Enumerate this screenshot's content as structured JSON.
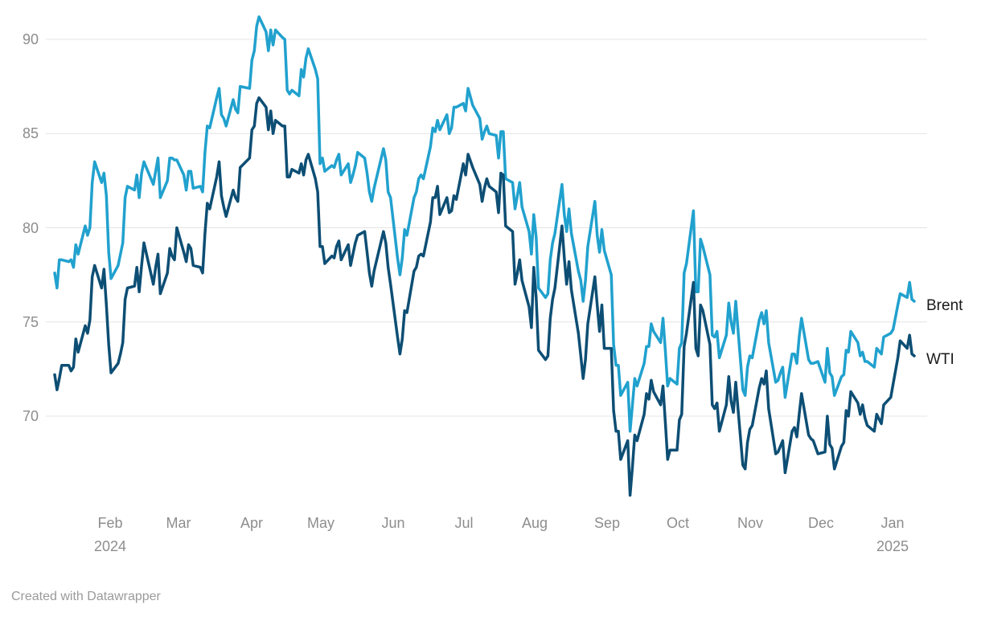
{
  "footer": {
    "credit": "Created with Datawrapper"
  },
  "colors": {
    "background": "#FFFFFF",
    "brent_line": "#21A1CE",
    "wti_line": "#0D4E74",
    "gridline": "#E4E4E4",
    "axis_text": "#8D8D8D",
    "legend_text": "#1A1A1A",
    "footer_text": "#9A9A9A"
  },
  "chart_data": {
    "type": "line",
    "title": "",
    "xlabel": "",
    "ylabel": "",
    "grid": "horizontal",
    "legend_position": "right-end-of-lines",
    "ylim": [
      65.5,
      91.5
    ],
    "x_range": [
      "2024-01-09",
      "2025-01-09"
    ],
    "y_ticks": [
      90,
      85,
      80,
      75,
      70
    ],
    "x_tick_labels": [
      "Feb",
      "Mar",
      "Apr",
      "May",
      "Jun",
      "Jul",
      "Aug",
      "Sep",
      "Oct",
      "Nov",
      "Dec",
      "Jan"
    ],
    "x_year_labels": [
      "2024",
      "2025"
    ],
    "series": [
      {
        "name": "Brent",
        "color": "#21A1CE"
      },
      {
        "name": "WTI",
        "color": "#0D4E74"
      }
    ],
    "points_format": [
      "date",
      "Brent",
      "WTI"
    ],
    "points": [
      [
        "2024-01-09",
        77.6,
        72.2
      ],
      [
        "2024-01-10",
        76.8,
        71.4
      ],
      [
        "2024-01-11",
        78.3,
        72.0
      ],
      [
        "2024-01-12",
        78.3,
        72.7
      ],
      [
        "2024-01-15",
        78.2,
        72.7
      ],
      [
        "2024-01-16",
        78.3,
        72.4
      ],
      [
        "2024-01-17",
        77.9,
        72.6
      ],
      [
        "2024-01-18",
        79.1,
        74.1
      ],
      [
        "2024-01-19",
        78.6,
        73.4
      ],
      [
        "2024-01-22",
        80.1,
        74.8
      ],
      [
        "2024-01-23",
        79.6,
        74.4
      ],
      [
        "2024-01-24",
        80.0,
        75.1
      ],
      [
        "2024-01-25",
        82.4,
        77.4
      ],
      [
        "2024-01-26",
        83.5,
        78.0
      ],
      [
        "2024-01-29",
        82.4,
        76.8
      ],
      [
        "2024-01-30",
        82.9,
        77.8
      ],
      [
        "2024-01-31",
        81.7,
        75.9
      ],
      [
        "2024-02-01",
        78.7,
        73.8
      ],
      [
        "2024-02-02",
        77.3,
        72.3
      ],
      [
        "2024-02-05",
        78.0,
        72.8
      ],
      [
        "2024-02-06",
        78.6,
        73.3
      ],
      [
        "2024-02-07",
        79.2,
        73.9
      ],
      [
        "2024-02-08",
        81.6,
        76.2
      ],
      [
        "2024-02-09",
        82.2,
        76.8
      ],
      [
        "2024-02-12",
        82.0,
        76.9
      ],
      [
        "2024-02-13",
        82.8,
        77.9
      ],
      [
        "2024-02-14",
        81.6,
        76.6
      ],
      [
        "2024-02-15",
        82.9,
        78.0
      ],
      [
        "2024-02-16",
        83.5,
        79.2
      ],
      [
        "2024-02-20",
        82.3,
        77.0
      ],
      [
        "2024-02-21",
        83.0,
        77.9
      ],
      [
        "2024-02-22",
        83.7,
        78.6
      ],
      [
        "2024-02-23",
        81.6,
        76.5
      ],
      [
        "2024-02-26",
        82.5,
        77.6
      ],
      [
        "2024-02-27",
        83.7,
        78.9
      ],
      [
        "2024-02-28",
        83.7,
        78.5
      ],
      [
        "2024-02-29",
        83.6,
        78.3
      ],
      [
        "2024-03-01",
        83.6,
        80.0
      ],
      [
        "2024-03-04",
        82.8,
        78.7
      ],
      [
        "2024-03-05",
        82.0,
        78.2
      ],
      [
        "2024-03-06",
        83.0,
        79.1
      ],
      [
        "2024-03-07",
        83.0,
        78.9
      ],
      [
        "2024-03-08",
        82.1,
        78.0
      ],
      [
        "2024-03-11",
        82.2,
        77.9
      ],
      [
        "2024-03-12",
        81.9,
        77.6
      ],
      [
        "2024-03-13",
        84.0,
        79.7
      ],
      [
        "2024-03-14",
        85.4,
        81.3
      ],
      [
        "2024-03-15",
        85.3,
        81.0
      ],
      [
        "2024-03-18",
        86.9,
        82.7
      ],
      [
        "2024-03-19",
        87.4,
        83.5
      ],
      [
        "2024-03-20",
        86.0,
        81.7
      ],
      [
        "2024-03-21",
        85.8,
        81.1
      ],
      [
        "2024-03-22",
        85.4,
        80.6
      ],
      [
        "2024-03-25",
        86.8,
        82.0
      ],
      [
        "2024-03-26",
        86.3,
        81.6
      ],
      [
        "2024-03-27",
        86.1,
        81.4
      ],
      [
        "2024-03-28",
        87.5,
        83.2
      ],
      [
        "2024-04-01",
        87.4,
        83.7
      ],
      [
        "2024-04-02",
        88.9,
        85.2
      ],
      [
        "2024-04-03",
        89.4,
        85.4
      ],
      [
        "2024-04-04",
        90.7,
        86.6
      ],
      [
        "2024-04-05",
        91.2,
        86.9
      ],
      [
        "2024-04-08",
        90.4,
        86.4
      ],
      [
        "2024-04-09",
        89.4,
        85.2
      ],
      [
        "2024-04-10",
        90.5,
        86.2
      ],
      [
        "2024-04-11",
        89.7,
        85.0
      ],
      [
        "2024-04-12",
        90.5,
        85.7
      ],
      [
        "2024-04-15",
        90.1,
        85.4
      ],
      [
        "2024-04-16",
        90.0,
        85.4
      ],
      [
        "2024-04-17",
        87.3,
        82.7
      ],
      [
        "2024-04-18",
        87.1,
        82.7
      ],
      [
        "2024-04-19",
        87.3,
        83.1
      ],
      [
        "2024-04-22",
        87.0,
        82.9
      ],
      [
        "2024-04-23",
        88.4,
        83.4
      ],
      [
        "2024-04-24",
        88.0,
        82.8
      ],
      [
        "2024-04-25",
        89.0,
        83.6
      ],
      [
        "2024-04-26",
        89.5,
        83.9
      ],
      [
        "2024-04-29",
        88.4,
        82.6
      ],
      [
        "2024-04-30",
        87.9,
        81.9
      ],
      [
        "2024-05-01",
        83.4,
        79.0
      ],
      [
        "2024-05-02",
        83.7,
        79.0
      ],
      [
        "2024-05-03",
        83.0,
        78.1
      ],
      [
        "2024-05-06",
        83.3,
        78.5
      ],
      [
        "2024-05-07",
        83.2,
        78.4
      ],
      [
        "2024-05-08",
        83.6,
        79.0
      ],
      [
        "2024-05-09",
        83.9,
        79.3
      ],
      [
        "2024-05-10",
        82.8,
        78.3
      ],
      [
        "2024-05-13",
        83.4,
        79.1
      ],
      [
        "2024-05-14",
        82.4,
        78.0
      ],
      [
        "2024-05-15",
        82.8,
        78.6
      ],
      [
        "2024-05-16",
        83.3,
        79.2
      ],
      [
        "2024-05-17",
        84.0,
        79.6
      ],
      [
        "2024-05-20",
        83.7,
        79.8
      ],
      [
        "2024-05-21",
        82.9,
        78.7
      ],
      [
        "2024-05-22",
        81.9,
        77.6
      ],
      [
        "2024-05-23",
        81.4,
        76.9
      ],
      [
        "2024-05-24",
        82.1,
        77.7
      ],
      [
        "2024-05-28",
        84.2,
        79.8
      ],
      [
        "2024-05-29",
        83.6,
        79.2
      ],
      [
        "2024-05-30",
        81.9,
        77.9
      ],
      [
        "2024-05-31",
        81.6,
        77.0
      ],
      [
        "2024-06-03",
        78.4,
        74.2
      ],
      [
        "2024-06-04",
        77.5,
        73.3
      ],
      [
        "2024-06-05",
        78.4,
        74.1
      ],
      [
        "2024-06-06",
        79.9,
        75.6
      ],
      [
        "2024-06-07",
        79.6,
        75.5
      ],
      [
        "2024-06-10",
        81.6,
        77.7
      ],
      [
        "2024-06-11",
        81.9,
        77.9
      ],
      [
        "2024-06-12",
        82.6,
        78.5
      ],
      [
        "2024-06-13",
        82.8,
        78.6
      ],
      [
        "2024-06-14",
        82.6,
        78.5
      ],
      [
        "2024-06-17",
        84.3,
        80.3
      ],
      [
        "2024-06-18",
        85.3,
        81.6
      ],
      [
        "2024-06-19",
        85.1,
        81.6
      ],
      [
        "2024-06-20",
        85.7,
        82.2
      ],
      [
        "2024-06-21",
        85.2,
        80.7
      ],
      [
        "2024-06-24",
        86.0,
        81.6
      ],
      [
        "2024-06-25",
        85.0,
        80.8
      ],
      [
        "2024-06-26",
        85.3,
        80.9
      ],
      [
        "2024-06-27",
        86.4,
        81.7
      ],
      [
        "2024-06-28",
        86.4,
        81.5
      ],
      [
        "2024-07-01",
        86.6,
        83.4
      ],
      [
        "2024-07-02",
        86.2,
        82.8
      ],
      [
        "2024-07-03",
        87.4,
        83.9
      ],
      [
        "2024-07-05",
        86.5,
        83.2
      ],
      [
        "2024-07-08",
        85.8,
        82.3
      ],
      [
        "2024-07-09",
        84.7,
        81.4
      ],
      [
        "2024-07-10",
        85.1,
        82.1
      ],
      [
        "2024-07-11",
        85.4,
        82.6
      ],
      [
        "2024-07-12",
        85.0,
        82.2
      ],
      [
        "2024-07-15",
        84.9,
        81.9
      ],
      [
        "2024-07-16",
        83.7,
        80.8
      ],
      [
        "2024-07-17",
        85.1,
        82.9
      ],
      [
        "2024-07-18",
        85.1,
        82.8
      ],
      [
        "2024-07-19",
        82.6,
        80.1
      ],
      [
        "2024-07-22",
        82.4,
        79.8
      ],
      [
        "2024-07-23",
        81.0,
        77.0
      ],
      [
        "2024-07-24",
        81.7,
        77.6
      ],
      [
        "2024-07-25",
        82.4,
        78.3
      ],
      [
        "2024-07-26",
        81.1,
        77.2
      ],
      [
        "2024-07-29",
        79.8,
        75.8
      ],
      [
        "2024-07-30",
        78.6,
        74.7
      ],
      [
        "2024-07-31",
        80.7,
        77.9
      ],
      [
        "2024-08-01",
        79.5,
        76.3
      ],
      [
        "2024-08-02",
        76.8,
        73.5
      ],
      [
        "2024-08-05",
        76.3,
        73.0
      ],
      [
        "2024-08-06",
        76.5,
        73.2
      ],
      [
        "2024-08-07",
        78.3,
        75.2
      ],
      [
        "2024-08-08",
        79.2,
        76.2
      ],
      [
        "2024-08-09",
        79.7,
        76.8
      ],
      [
        "2024-08-12",
        82.3,
        80.1
      ],
      [
        "2024-08-13",
        80.7,
        78.4
      ],
      [
        "2024-08-14",
        79.8,
        77.0
      ],
      [
        "2024-08-15",
        81.0,
        78.2
      ],
      [
        "2024-08-16",
        79.7,
        76.7
      ],
      [
        "2024-08-19",
        77.7,
        74.4
      ],
      [
        "2024-08-20",
        77.2,
        73.2
      ],
      [
        "2024-08-21",
        76.1,
        72.0
      ],
      [
        "2024-08-22",
        77.2,
        73.0
      ],
      [
        "2024-08-23",
        79.0,
        74.9
      ],
      [
        "2024-08-26",
        81.4,
        77.4
      ],
      [
        "2024-08-27",
        79.6,
        75.9
      ],
      [
        "2024-08-28",
        78.7,
        74.5
      ],
      [
        "2024-08-29",
        79.9,
        75.9
      ],
      [
        "2024-08-30",
        78.8,
        73.6
      ],
      [
        "2024-09-02",
        77.5,
        73.6
      ],
      [
        "2024-09-03",
        73.8,
        70.3
      ],
      [
        "2024-09-04",
        72.7,
        69.2
      ],
      [
        "2024-09-05",
        72.7,
        69.2
      ],
      [
        "2024-09-06",
        71.1,
        67.7
      ],
      [
        "2024-09-09",
        71.8,
        68.7
      ],
      [
        "2024-09-10",
        69.2,
        65.8
      ],
      [
        "2024-09-11",
        70.6,
        67.3
      ],
      [
        "2024-09-12",
        72.0,
        69.0
      ],
      [
        "2024-09-13",
        71.6,
        68.7
      ],
      [
        "2024-09-16",
        72.8,
        70.1
      ],
      [
        "2024-09-17",
        73.7,
        71.2
      ],
      [
        "2024-09-18",
        73.7,
        70.9
      ],
      [
        "2024-09-19",
        74.9,
        71.9
      ],
      [
        "2024-09-20",
        74.5,
        71.3
      ],
      [
        "2024-09-23",
        73.9,
        70.6
      ],
      [
        "2024-09-24",
        75.2,
        71.6
      ],
      [
        "2024-09-25",
        73.5,
        69.7
      ],
      [
        "2024-09-26",
        71.6,
        67.7
      ],
      [
        "2024-09-27",
        72.0,
        68.2
      ],
      [
        "2024-09-30",
        71.7,
        68.2
      ],
      [
        "2024-10-01",
        73.6,
        69.8
      ],
      [
        "2024-10-02",
        73.9,
        70.1
      ],
      [
        "2024-10-03",
        77.6,
        73.7
      ],
      [
        "2024-10-04",
        78.1,
        74.4
      ],
      [
        "2024-10-07",
        80.9,
        77.1
      ],
      [
        "2024-10-08",
        76.6,
        73.6
      ],
      [
        "2024-10-09",
        76.6,
        73.2
      ],
      [
        "2024-10-10",
        79.4,
        75.9
      ],
      [
        "2024-10-11",
        79.0,
        75.6
      ],
      [
        "2024-10-14",
        77.5,
        73.8
      ],
      [
        "2024-10-15",
        74.3,
        70.6
      ],
      [
        "2024-10-16",
        74.2,
        70.4
      ],
      [
        "2024-10-17",
        74.5,
        70.7
      ],
      [
        "2024-10-18",
        73.1,
        69.2
      ],
      [
        "2024-10-21",
        74.3,
        70.6
      ],
      [
        "2024-10-22",
        76.0,
        72.1
      ],
      [
        "2024-10-23",
        75.0,
        70.8
      ],
      [
        "2024-10-24",
        74.4,
        70.2
      ],
      [
        "2024-10-25",
        76.1,
        71.8
      ],
      [
        "2024-10-28",
        71.4,
        67.4
      ],
      [
        "2024-10-29",
        71.1,
        67.2
      ],
      [
        "2024-10-30",
        72.6,
        68.6
      ],
      [
        "2024-10-31",
        73.2,
        69.3
      ],
      [
        "2024-11-01",
        73.1,
        69.5
      ],
      [
        "2024-11-04",
        75.1,
        71.5
      ],
      [
        "2024-11-05",
        75.5,
        72.0
      ],
      [
        "2024-11-06",
        74.9,
        71.7
      ],
      [
        "2024-11-07",
        75.6,
        72.4
      ],
      [
        "2024-11-08",
        73.9,
        70.4
      ],
      [
        "2024-11-11",
        71.8,
        68.0
      ],
      [
        "2024-11-12",
        71.9,
        68.1
      ],
      [
        "2024-11-13",
        72.3,
        68.4
      ],
      [
        "2024-11-14",
        72.6,
        68.7
      ],
      [
        "2024-11-15",
        71.0,
        67.0
      ],
      [
        "2024-11-18",
        73.3,
        69.2
      ],
      [
        "2024-11-19",
        73.3,
        69.4
      ],
      [
        "2024-11-20",
        72.8,
        68.9
      ],
      [
        "2024-11-21",
        74.2,
        70.1
      ],
      [
        "2024-11-22",
        75.2,
        71.2
      ],
      [
        "2024-11-25",
        73.0,
        69.0
      ],
      [
        "2024-11-26",
        72.8,
        68.8
      ],
      [
        "2024-11-27",
        72.8,
        68.7
      ],
      [
        "2024-11-29",
        72.9,
        68.0
      ],
      [
        "2024-12-02",
        71.8,
        68.1
      ],
      [
        "2024-12-03",
        73.6,
        70.0
      ],
      [
        "2024-12-04",
        72.3,
        68.5
      ],
      [
        "2024-12-05",
        72.1,
        68.3
      ],
      [
        "2024-12-06",
        71.1,
        67.2
      ],
      [
        "2024-12-09",
        72.1,
        68.4
      ],
      [
        "2024-12-10",
        72.2,
        68.6
      ],
      [
        "2024-12-11",
        73.5,
        70.3
      ],
      [
        "2024-12-12",
        73.4,
        70.0
      ],
      [
        "2024-12-13",
        74.5,
        71.3
      ],
      [
        "2024-12-16",
        73.9,
        70.7
      ],
      [
        "2024-12-17",
        73.2,
        70.1
      ],
      [
        "2024-12-18",
        73.4,
        70.6
      ],
      [
        "2024-12-19",
        72.9,
        69.9
      ],
      [
        "2024-12-20",
        72.9,
        69.5
      ],
      [
        "2024-12-23",
        72.6,
        69.2
      ],
      [
        "2024-12-24",
        73.6,
        70.1
      ],
      [
        "2024-12-26",
        73.3,
        69.6
      ],
      [
        "2024-12-27",
        74.2,
        70.6
      ],
      [
        "2024-12-30",
        74.4,
        71.0
      ],
      [
        "2024-12-31",
        74.6,
        71.7
      ],
      [
        "2025-01-02",
        75.9,
        73.1
      ],
      [
        "2025-01-03",
        76.5,
        74.0
      ],
      [
        "2025-01-06",
        76.3,
        73.6
      ],
      [
        "2025-01-07",
        77.1,
        74.3
      ],
      [
        "2025-01-08",
        76.2,
        73.3
      ],
      [
        "2025-01-09",
        76.1,
        73.2
      ]
    ]
  }
}
